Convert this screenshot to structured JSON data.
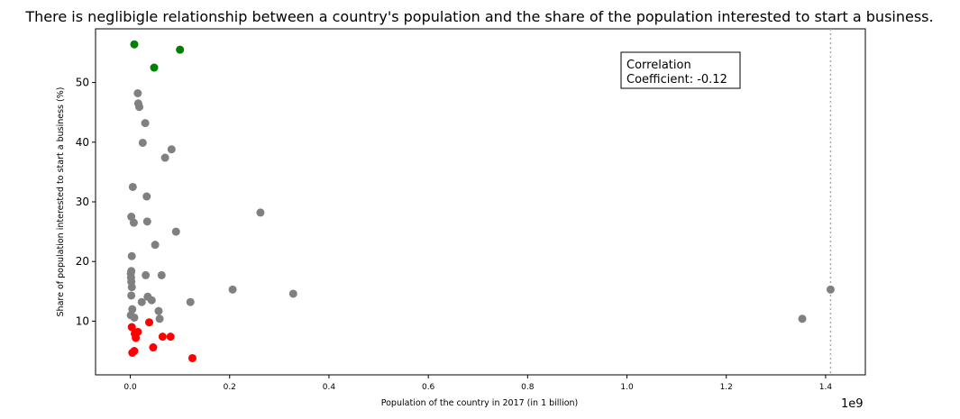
{
  "chart_data": {
    "type": "scatter",
    "title": "There is neglibigle relationship between a country's population and the share of the population interested to start a business.",
    "xlabel": "Population of the country in 2017 (in 1 billion)",
    "ylabel": "Share of population interested to start a business (%)",
    "x_offset_label": "1e9",
    "x_scale": 1000000000,
    "xlim": [
      -0.07,
      1.48
    ],
    "ylim": [
      1,
      59
    ],
    "x_ticks": [
      "0.0",
      "0.2",
      "0.4",
      "0.6",
      "0.8",
      "1.0",
      "1.2",
      "1.4"
    ],
    "y_ticks": [
      "10",
      "20",
      "30",
      "40",
      "50"
    ],
    "grid": false,
    "annotation": [
      "Correlation",
      "Coefficient: -0.12"
    ],
    "reference_line": {
      "x": 1.41,
      "style": "dotted",
      "color": "#aaaaaa"
    },
    "series": [
      {
        "color": "#008000",
        "x": [
          0.008,
          0.048,
          0.1
        ],
        "y": [
          56.4,
          52.5,
          55.5
        ]
      },
      {
        "color": "#808080",
        "x": [
          0.015,
          0.016,
          0.018,
          0.03,
          0.025,
          0.083,
          0.07,
          0.005,
          0.033,
          0.002,
          0.007,
          0.034,
          0.262,
          0.092,
          0.05,
          0.003,
          0.002,
          0.001,
          0.0015,
          0.002,
          0.003,
          0.031,
          0.063,
          0.002,
          0.206,
          0.328,
          1.41,
          0.035,
          0.043,
          0.023,
          0.121,
          0.057,
          0.004,
          0.001,
          0.008,
          0.059,
          1.353
        ],
        "y": [
          48.2,
          46.5,
          45.9,
          43.2,
          39.9,
          38.8,
          37.4,
          32.5,
          30.9,
          27.5,
          26.5,
          26.7,
          28.2,
          25.0,
          22.8,
          20.9,
          18.4,
          18.0,
          17.3,
          16.6,
          15.7,
          17.7,
          17.7,
          14.3,
          15.3,
          14.6,
          15.3,
          14.1,
          13.5,
          13.2,
          13.2,
          11.7,
          12.0,
          11.0,
          10.6,
          10.4,
          10.4
        ]
      },
      {
        "color": "#ff0000",
        "x": [
          0.038,
          0.003,
          0.015,
          0.009,
          0.011,
          0.065,
          0.081,
          0.046,
          0.008,
          0.004,
          0.125
        ],
        "y": [
          9.8,
          9.0,
          8.2,
          7.9,
          7.2,
          7.4,
          7.4,
          5.6,
          5.0,
          4.7,
          3.8
        ]
      }
    ]
  }
}
